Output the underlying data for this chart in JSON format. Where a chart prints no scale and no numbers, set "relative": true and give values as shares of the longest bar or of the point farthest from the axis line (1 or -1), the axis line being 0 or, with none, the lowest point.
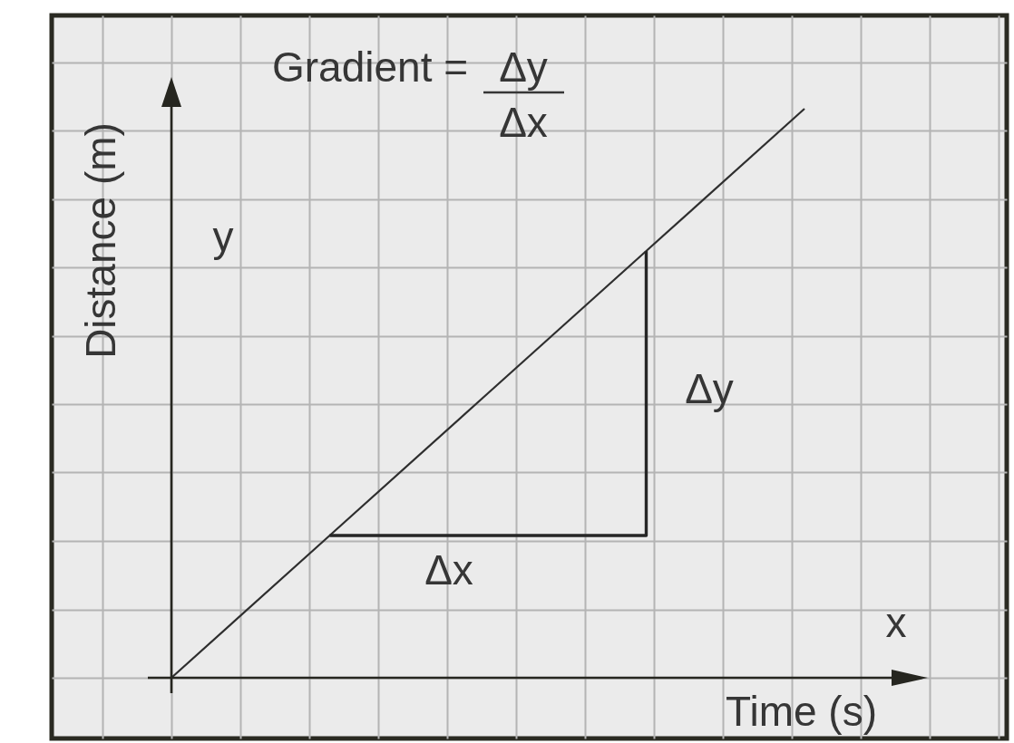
{
  "chart_data": {
    "type": "line",
    "xlabel": "Time (s)",
    "ylabel": "Distance (m)",
    "categories": [
      null,
      null,
      null,
      null,
      null
    ],
    "series": [
      {
        "color": "#2e2e2e",
        "values": [
          0,
          0.25,
          0.5,
          0.75,
          1
        ]
      },
      {
        "type": "step",
        "color": "#262626",
        "values": [
          null,
          0.25,
          0.25,
          0.75,
          null
        ]
      }
    ],
    "relative": true,
    "grid": true,
    "line_style": "solid",
    "annotations": [
      "Gradient =",
      "Δy",
      "Δx",
      "Δy",
      "Δx",
      "y",
      "x"
    ]
  }
}
